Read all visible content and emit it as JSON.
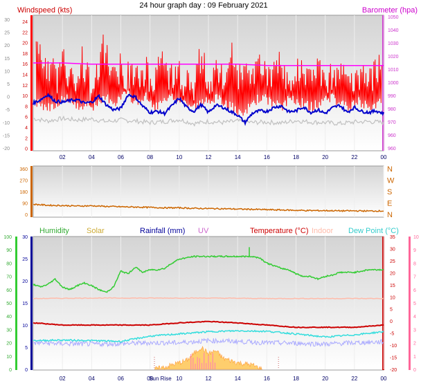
{
  "title": "24 hour graph day : 09 February 2021",
  "colors": {
    "wind": "#ff0000",
    "gust_dark": "#0000cc",
    "gray_series": "#c0c0c0",
    "baro": "#ff00ff",
    "wind_dir": "#cc6600",
    "humidity": "#33cc33",
    "solar": "#ffaa33",
    "rain": "#000099",
    "uv": "#cc66cc",
    "temp": "#cc0000",
    "indoor": "#ffbbaa",
    "dew": "#33dddd",
    "lavender": "#aaaaff"
  },
  "chart_data": [
    {
      "type": "line",
      "panel": "wind-baro",
      "title": "24 hour graph day : 09 February 2021",
      "left_axis_label": "Windspeed (kts)",
      "right_axis_label": "Barometer (hpa)",
      "x_ticks": [
        "02",
        "04",
        "06",
        "08",
        "10",
        "12",
        "14",
        "16",
        "18",
        "20",
        "22",
        "00"
      ],
      "y_outer_ticks": [
        "30",
        "25",
        "20",
        "15",
        "10",
        "5",
        "0",
        "-5",
        "-10",
        "-15",
        "-20"
      ],
      "y_left_ticks": [
        "24",
        "22",
        "20",
        "18",
        "16",
        "14",
        "12",
        "10",
        "8",
        "6",
        "4",
        "2",
        "0"
      ],
      "y_right_ticks": [
        "1050",
        "1040",
        "1030",
        "1020",
        "1010",
        "1000",
        "990",
        "980",
        "970",
        "960",
        "960"
      ],
      "xlim": [
        0,
        24
      ],
      "ylim_left": [
        0,
        25
      ],
      "series": [
        {
          "name": "wind_gust_peaks",
          "x": [
            0.3,
            0.6,
            1.0,
            1.3,
            1.7,
            2.0,
            2.3,
            2.7,
            3.0,
            3.3,
            3.7,
            4.0,
            4.3,
            4.7,
            5.0,
            5.3,
            5.7,
            6.0,
            6.3,
            6.7,
            7.0,
            7.3,
            7.7,
            8.0,
            8.3,
            8.7,
            9.0,
            9.3,
            9.7,
            10.0,
            10.3,
            10.7,
            11.0,
            11.3,
            11.7,
            12.0,
            12.3,
            12.7,
            13.0,
            13.3,
            13.7,
            14.0,
            14.3,
            14.7,
            15.0,
            15.3,
            15.7,
            16.0,
            16.3,
            16.7,
            17.0,
            17.3,
            17.7,
            18.0,
            18.3,
            18.7,
            19.0,
            19.3,
            19.7,
            20.0,
            20.3,
            20.7,
            21.0,
            21.3,
            21.7,
            22.0,
            22.3,
            22.7,
            23.0,
            23.3,
            23.7
          ],
          "values": [
            23,
            20,
            17,
            19,
            16,
            23,
            16,
            18,
            15,
            21,
            17,
            14,
            16,
            22,
            23,
            18,
            16,
            20,
            16,
            18,
            17,
            15,
            19,
            16,
            17,
            21,
            19,
            17,
            16,
            18,
            16,
            17,
            15,
            20,
            19,
            16,
            17,
            18,
            16,
            20,
            21,
            16,
            18,
            17,
            15,
            19,
            20,
            17,
            16,
            18,
            20,
            16,
            17,
            18,
            19,
            16,
            17,
            19,
            18,
            16,
            17,
            15,
            18,
            17,
            16,
            15,
            17,
            18,
            16,
            17,
            19
          ]
        },
        {
          "name": "wind_speed_low",
          "x": [
            0.3,
            1.0,
            1.7,
            2.3,
            3.0,
            3.7,
            4.3,
            5.0,
            5.7,
            6.3,
            7.0,
            7.7,
            8.3,
            9.0,
            9.7,
            10.3,
            11.0,
            11.7,
            12.3,
            13.0,
            13.7,
            14.3,
            15.0,
            15.7,
            16.3,
            17.0,
            17.7,
            18.3,
            19.0,
            19.7,
            20.3,
            21.0,
            21.7,
            22.3,
            23.0,
            23.7
          ],
          "values": [
            8,
            7,
            8,
            9,
            7,
            8,
            7,
            9,
            8,
            10,
            8,
            9,
            7,
            8,
            9,
            8,
            7,
            8,
            9,
            8,
            7,
            5,
            8,
            9,
            8,
            7,
            9,
            8,
            7,
            8,
            9,
            8,
            7,
            8,
            7,
            8
          ]
        },
        {
          "name": "dark_blue",
          "x": [
            0,
            0.5,
            1,
            1.5,
            2,
            2.5,
            3,
            3.5,
            4,
            4.5,
            5,
            5.5,
            6,
            6.5,
            7,
            7.5,
            8,
            8.5,
            9,
            9.5,
            10,
            10.5,
            11,
            11.5,
            12,
            12.5,
            13,
            13.5,
            14,
            14.5,
            15,
            15.5,
            16,
            16.5,
            17,
            17.5,
            18,
            18.5,
            19,
            19.5,
            20,
            20.5,
            21,
            21.5,
            22,
            22.5,
            23,
            23.5,
            24
          ],
          "values": [
            8.8,
            9.5,
            10.5,
            9.2,
            9.0,
            9.3,
            9.5,
            8.8,
            9.0,
            10.2,
            8.5,
            7.5,
            7.8,
            10.5,
            10.0,
            8.2,
            7.0,
            7.2,
            6.8,
            8.3,
            9.8,
            8.0,
            7.2,
            8.5,
            7.0,
            8.4,
            8.0,
            7.2,
            6.5,
            5.0,
            6.8,
            7.3,
            7.2,
            8.0,
            8.3,
            7.1,
            7.3,
            8.1,
            7.0,
            7.5,
            6.8,
            7.9,
            8.4,
            7.0,
            8.0,
            7.2,
            7.0,
            7.3,
            6.8
          ]
        },
        {
          "name": "light_gray",
          "x": [
            0,
            1,
            2,
            3,
            4,
            5,
            6,
            7,
            8,
            9,
            10,
            11,
            12,
            13,
            14,
            15,
            16,
            17,
            18,
            19,
            20,
            21,
            22,
            23,
            24
          ],
          "values": [
            5.8,
            5.3,
            5.8,
            5.5,
            5.7,
            5.2,
            5.5,
            5.3,
            5.0,
            5.2,
            5.6,
            4.8,
            5.2,
            5.0,
            5.3,
            5.0,
            5.1,
            4.9,
            5.4,
            5.1,
            5.0,
            4.8,
            5.1,
            5.2,
            5.0
          ]
        },
        {
          "name": "barometer",
          "x": [
            0,
            2,
            4,
            6,
            8,
            10,
            12,
            14,
            16,
            18,
            20,
            22,
            24
          ],
          "values": [
            1014,
            1014,
            1013,
            1013,
            1013,
            1013,
            1013,
            1013,
            1012,
            1012,
            1012,
            1012,
            1012
          ]
        }
      ]
    },
    {
      "type": "line",
      "panel": "wind-direction",
      "y_left_ticks": [
        "360",
        "270",
        "180",
        "90",
        "0"
      ],
      "y_right_ticks": [
        "N",
        "W",
        "S",
        "E",
        "N"
      ],
      "xlim": [
        0,
        24
      ],
      "ylim": [
        0,
        360
      ],
      "series": [
        {
          "name": "wind_direction",
          "x": [
            0,
            1,
            2,
            3,
            4,
            5,
            6,
            7,
            8,
            9,
            10,
            11,
            12,
            13,
            14,
            15,
            16,
            17,
            18,
            19,
            20,
            21,
            22,
            23,
            24
          ],
          "values": [
            80,
            72,
            70,
            66,
            68,
            63,
            60,
            58,
            55,
            52,
            52,
            48,
            46,
            45,
            42,
            40,
            37,
            35,
            32,
            30,
            30,
            28,
            28,
            27,
            27
          ]
        }
      ]
    },
    {
      "type": "line",
      "panel": "temperature",
      "legend": [
        "Humidity",
        "Solar",
        "Rainfall (mm)",
        "UV",
        "Temperature (°C)",
        "Indoor",
        "Dew Point (°C)"
      ],
      "y_hum_ticks": [
        "100",
        "90",
        "80",
        "70",
        "60",
        "50",
        "40",
        "30",
        "20",
        "10",
        "0"
      ],
      "y_temp_left_ticks": [
        "30",
        "25",
        "20",
        "15",
        "10",
        "5",
        "0"
      ],
      "y_temp_right_ticks": [
        "35",
        "30",
        "25",
        "20",
        "15",
        "10",
        "5",
        "0",
        "-5",
        "-10",
        "-15",
        "-20"
      ],
      "y_uv_ticks": [
        "10",
        "9",
        "8",
        "7",
        "6",
        "5",
        "4",
        "3",
        "2",
        "1",
        "0"
      ],
      "x_ticks": [
        "02",
        "04",
        "06",
        "08",
        "Sun Rise",
        "10",
        "12",
        "14",
        "16",
        "18",
        "20",
        "22",
        "00"
      ],
      "xlim": [
        0,
        24
      ],
      "series": [
        {
          "name": "humidity_pct",
          "x": [
            0,
            0.5,
            1,
            1.5,
            2,
            2.5,
            3,
            3.5,
            4,
            4.5,
            5,
            5.5,
            6,
            6.5,
            7,
            7.5,
            8,
            8.5,
            9,
            9.5,
            10,
            11,
            12,
            13,
            14,
            14.8,
            15,
            15.5,
            16,
            16.5,
            17,
            17.5,
            18,
            18.5,
            19,
            19.5,
            20,
            20.5,
            21,
            21.5,
            22,
            22.5,
            23,
            24
          ],
          "values": [
            64,
            62,
            64,
            68,
            62,
            60,
            63,
            65,
            63,
            60,
            58,
            62,
            74,
            72,
            77,
            73,
            75,
            75,
            76,
            80,
            83,
            85,
            85,
            85,
            85,
            85,
            85,
            84,
            80,
            78,
            76,
            75,
            72,
            70,
            70,
            68,
            70,
            71,
            73,
            73,
            73,
            74,
            75,
            75
          ]
        },
        {
          "name": "temperature_c",
          "x": [
            0,
            2,
            4,
            6,
            8,
            10,
            12,
            14,
            16,
            18,
            20,
            22,
            24
          ],
          "values": [
            10.5,
            10.0,
            10.0,
            10.0,
            10.0,
            10.5,
            10.8,
            10.5,
            10.0,
            9.5,
            9.5,
            9.5,
            10.0
          ]
        },
        {
          "name": "indoor_c",
          "x": [
            0,
            4,
            8,
            12,
            16,
            20,
            24
          ],
          "values": [
            16.0,
            16.1,
            16.1,
            16.1,
            16.0,
            16.0,
            16.0
          ]
        },
        {
          "name": "dew_point_c",
          "x": [
            0,
            2,
            4,
            6,
            8,
            10,
            12,
            14,
            16,
            18,
            20,
            22,
            24
          ],
          "values": [
            6.5,
            6.6,
            6.5,
            6.3,
            7.5,
            8.0,
            8.5,
            8.7,
            8.6,
            8.0,
            7.3,
            7.8,
            8.5
          ]
        },
        {
          "name": "lavender_series",
          "x": [
            0,
            2,
            4,
            6,
            8,
            10,
            12,
            14,
            16,
            18,
            20,
            22,
            24
          ],
          "values": [
            6.0,
            5.8,
            5.7,
            5.8,
            6.0,
            6.0,
            6.5,
            6.3,
            6.0,
            5.9,
            5.7,
            6.0,
            6.2
          ]
        },
        {
          "name": "solar_profile",
          "x": [
            8.3,
            9,
            10,
            10.5,
            11,
            11.5,
            12,
            12.5,
            13,
            14,
            15,
            15.7
          ],
          "values": [
            0,
            0.5,
            1.5,
            2.0,
            3.5,
            5.0,
            3.5,
            4.2,
            2.5,
            1.5,
            1.0,
            0
          ]
        }
      ]
    }
  ]
}
